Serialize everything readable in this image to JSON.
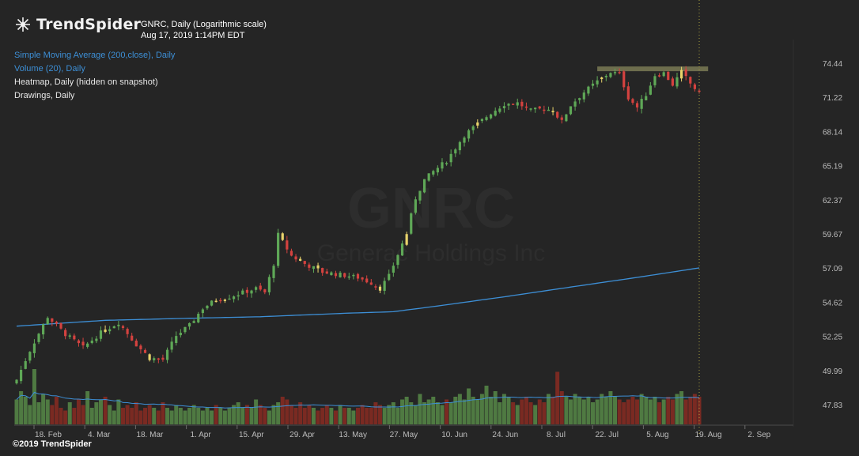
{
  "header": {
    "brand_name": "TrendSpider",
    "ticker_title": "GNRC, Daily (Logarithmic scale)",
    "timestamp": "Aug 17, 2019 1:14PM EDT",
    "watermark_symbol": "GNRC",
    "watermark_name": "Generac Holdings Inc"
  },
  "indicators": [
    {
      "label": "Simple Moving Average (200,close), Daily",
      "color": "#3d8fd6"
    },
    {
      "label": "Volume (20), Daily",
      "color": "#3d8fd6"
    },
    {
      "label": "Heatmap, Daily (hidden on snapshot)",
      "color": "#e6e6e6"
    },
    {
      "label": "Drawings, Daily",
      "color": "#e6e6e6"
    }
  ],
  "footer": {
    "copyright": "©2019 TrendSpider"
  },
  "colors": {
    "background": "#252525",
    "up_candle": "#5fa857",
    "down_candle": "#d4423f",
    "neutral_candle": "#e8d36b",
    "sma_line": "#3d8fd6",
    "resistance_zone": "#7a7a55",
    "volume_up": "#4f7a42",
    "volume_down": "#7a2a22"
  },
  "icons": {
    "logo": "trendspider-web-icon"
  },
  "chart_data": {
    "type": "candlestick",
    "scale": "log",
    "y_ticks": [
      "74.44",
      "71.22",
      "68.14",
      "65.19",
      "62.37",
      "59.67",
      "57.09",
      "54.62",
      "52.25",
      "49.99",
      "47.83"
    ],
    "x_ticks": [
      "18. Feb",
      "4. Mar",
      "18. Mar",
      "1. Apr",
      "15. Apr",
      "29. Apr",
      "13. May",
      "27. May",
      "10. Jun",
      "24. Jun",
      "8. Jul",
      "22. Jul",
      "5. Aug",
      "19. Aug",
      "2. Sep"
    ],
    "close_anchors": [
      [
        0,
        49.4
      ],
      [
        3,
        51.3
      ],
      [
        7,
        53.6
      ],
      [
        11,
        52.4
      ],
      [
        15,
        51.5
      ],
      [
        19,
        52.5
      ],
      [
        23,
        53.2
      ],
      [
        27,
        51.7
      ],
      [
        30,
        50.8
      ],
      [
        33,
        50.7
      ],
      [
        36,
        52.3
      ],
      [
        39,
        53.0
      ],
      [
        42,
        54.2
      ],
      [
        45,
        54.8
      ],
      [
        48,
        55.0
      ],
      [
        51,
        55.3
      ],
      [
        54,
        55.6
      ],
      [
        56,
        55.3
      ],
      [
        58,
        57.4
      ],
      [
        59,
        59.6
      ],
      [
        62,
        58.0
      ],
      [
        65,
        57.4
      ],
      [
        69,
        56.8
      ],
      [
        73,
        56.6
      ],
      [
        77,
        56.4
      ],
      [
        80,
        56.0
      ],
      [
        82,
        55.6
      ],
      [
        84,
        56.5
      ],
      [
        86,
        58.1
      ],
      [
        88,
        59.7
      ],
      [
        90,
        62.5
      ],
      [
        92,
        64.0
      ],
      [
        94,
        64.7
      ],
      [
        97,
        65.6
      ],
      [
        99,
        66.7
      ],
      [
        101,
        67.8
      ],
      [
        104,
        68.8
      ],
      [
        107,
        69.8
      ],
      [
        110,
        70.6
      ],
      [
        113,
        70.7
      ],
      [
        116,
        70.0
      ],
      [
        119,
        70.2
      ],
      [
        121,
        70.0
      ],
      [
        123,
        69.0
      ],
      [
        125,
        70.5
      ],
      [
        128,
        71.7
      ],
      [
        131,
        72.7
      ],
      [
        134,
        73.6
      ],
      [
        136,
        73.4
      ],
      [
        138,
        71.2
      ],
      [
        140,
        70.3
      ],
      [
        142,
        71.5
      ],
      [
        144,
        73.3
      ],
      [
        146,
        73.5
      ],
      [
        148,
        72.4
      ],
      [
        150,
        73.6
      ],
      [
        152,
        72.5
      ],
      [
        154,
        71.6
      ],
      [
        156,
        73.9
      ]
    ],
    "sma200_anchors": [
      [
        0,
        52.95
      ],
      [
        20,
        53.35
      ],
      [
        40,
        53.5
      ],
      [
        55,
        53.6
      ],
      [
        75,
        53.85
      ],
      [
        85,
        53.95
      ],
      [
        95,
        54.35
      ],
      [
        110,
        55.0
      ],
      [
        125,
        55.7
      ],
      [
        140,
        56.4
      ],
      [
        156,
        57.2
      ]
    ],
    "volume_relative": [
      0.45,
      0.6,
      0.5,
      0.35,
      1.0,
      0.4,
      0.55,
      0.45,
      0.35,
      0.5,
      0.3,
      0.25,
      0.4,
      0.3,
      0.45,
      0.35,
      0.6,
      0.3,
      0.4,
      0.45,
      0.5,
      0.35,
      0.25,
      0.45,
      0.3,
      0.35,
      0.3,
      0.4,
      0.25,
      0.3,
      0.35,
      0.3,
      0.25,
      0.4,
      0.3,
      0.25,
      0.35,
      0.3,
      0.25,
      0.3,
      0.35,
      0.3,
      0.25,
      0.3,
      0.25,
      0.35,
      0.3,
      0.25,
      0.3,
      0.35,
      0.4,
      0.3,
      0.35,
      0.3,
      0.45,
      0.35,
      0.3,
      0.25,
      0.35,
      0.4,
      0.5,
      0.45,
      0.35,
      0.3,
      0.4,
      0.3,
      0.35,
      0.3,
      0.25,
      0.3,
      0.35,
      0.3,
      0.25,
      0.35,
      0.3,
      0.3,
      0.25,
      0.3,
      0.35,
      0.3,
      0.3,
      0.4,
      0.35,
      0.3,
      0.35,
      0.4,
      0.3,
      0.45,
      0.5,
      0.4,
      0.35,
      0.55,
      0.4,
      0.45,
      0.5,
      0.4,
      0.35,
      0.45,
      0.4,
      0.5,
      0.55,
      0.45,
      0.65,
      0.5,
      0.45,
      0.55,
      0.7,
      0.5,
      0.6,
      0.4,
      0.55,
      0.5,
      0.4,
      0.35,
      0.45,
      0.5,
      0.4,
      0.35,
      0.45,
      0.4,
      0.55,
      0.5,
      0.95,
      0.6,
      0.5,
      0.45,
      0.55,
      0.5,
      0.45,
      0.5,
      0.4,
      0.45,
      0.55,
      0.5,
      0.6,
      0.5,
      0.45,
      0.4,
      0.45,
      0.5,
      0.45,
      0.55,
      0.5,
      0.45,
      0.5,
      0.4,
      0.45,
      0.5,
      0.45,
      0.55,
      0.6,
      0.45,
      0.5,
      0.55,
      0.5
    ],
    "resistance_level": 73.9,
    "grid": false,
    "legend": "top-left"
  }
}
